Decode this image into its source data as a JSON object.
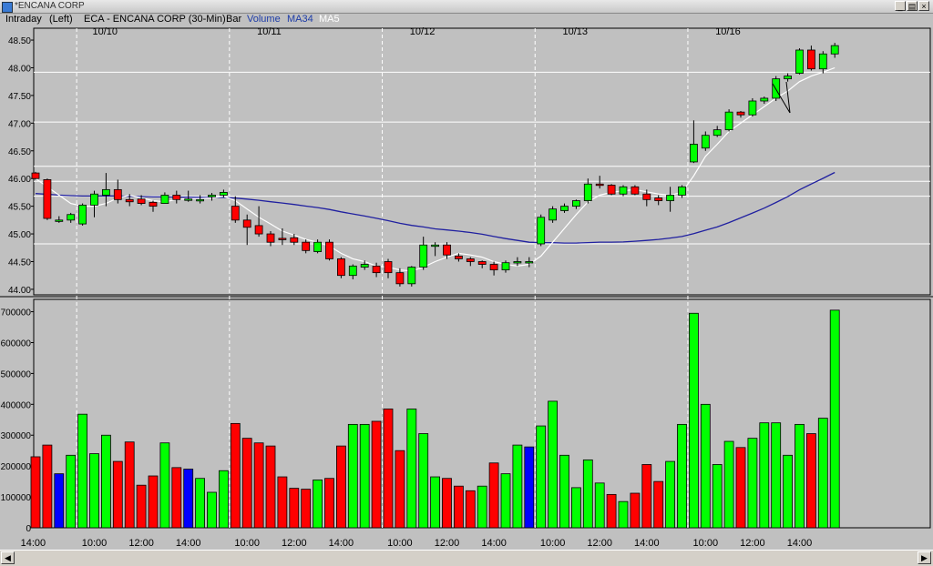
{
  "window": {
    "title": "*ENCANA CORP"
  },
  "header": {
    "mode": "Intraday",
    "scale_side": "(Left)",
    "instrument": "ECA - ENCANA CORP (30-Min)",
    "style": "Bar",
    "ind_volume": "Volume",
    "ind_ma34": "MA34",
    "ind_ma5": "MA5"
  },
  "colors": {
    "up": "#00ff00",
    "down": "#ff0000",
    "neutral_volume": "#0000ff",
    "ma34": "#2020a0",
    "ma5": "#ffffff",
    "background": "#c0c0c0"
  },
  "chart_data": {
    "type": "candlestick",
    "date_labels": [
      {
        "label": "10/10",
        "bar": 5
      },
      {
        "label": "10/11",
        "bar": 19
      },
      {
        "label": "10/12",
        "bar": 32
      },
      {
        "label": "10/13",
        "bar": 45
      },
      {
        "label": "10/16",
        "bar": 58
      }
    ],
    "session_breaks": [
      3.5,
      16.5,
      29.5,
      42.5,
      55.5
    ],
    "time_labels": [
      {
        "label": "14:00",
        "bar": -0.2
      },
      {
        "label": "10:00",
        "bar": 5
      },
      {
        "label": "12:00",
        "bar": 9
      },
      {
        "label": "14:00",
        "bar": 13
      },
      {
        "label": "10:00",
        "bar": 18
      },
      {
        "label": "12:00",
        "bar": 22
      },
      {
        "label": "14:00",
        "bar": 26
      },
      {
        "label": "10:00",
        "bar": 31
      },
      {
        "label": "12:00",
        "bar": 35
      },
      {
        "label": "14:00",
        "bar": 39
      },
      {
        "label": "10:00",
        "bar": 44
      },
      {
        "label": "12:00",
        "bar": 48
      },
      {
        "label": "14:00",
        "bar": 52
      },
      {
        "label": "10:00",
        "bar": 57
      },
      {
        "label": "12:00",
        "bar": 61
      },
      {
        "label": "14:00",
        "bar": 65
      }
    ],
    "price_axis": {
      "min": 43.9,
      "max": 48.55,
      "ticks": [
        "44.00",
        "44.50",
        "45.00",
        "45.50",
        "46.00",
        "46.50",
        "47.00",
        "47.50",
        "48.00",
        "48.50"
      ]
    },
    "volume_axis": {
      "min": 0,
      "max": 740000,
      "ticks": [
        "0",
        "100000",
        "200000",
        "300000",
        "400000",
        "500000",
        "600000",
        "700000"
      ]
    },
    "horizontal_lines": [
      47.92,
      47.02,
      46.22,
      45.95,
      45.68,
      44.82
    ],
    "bars": [
      {
        "o": 46.1,
        "h": 46.12,
        "l": 45.98,
        "c": 46.0,
        "v": 230000,
        "vc": "down"
      },
      {
        "o": 45.98,
        "h": 46.0,
        "l": 45.25,
        "c": 45.28,
        "v": 268000,
        "vc": "down"
      },
      {
        "o": 45.25,
        "h": 45.32,
        "l": 45.2,
        "c": 45.25,
        "v": 175000,
        "vc": "neutral"
      },
      {
        "o": 45.25,
        "h": 45.38,
        "l": 45.2,
        "c": 45.35,
        "v": 235000,
        "vc": "up"
      },
      {
        "o": 45.18,
        "h": 45.55,
        "l": 45.15,
        "c": 45.52,
        "v": 368000,
        "vc": "up"
      },
      {
        "o": 45.52,
        "h": 45.78,
        "l": 45.3,
        "c": 45.72,
        "v": 240000,
        "vc": "up"
      },
      {
        "o": 45.7,
        "h": 46.1,
        "l": 45.5,
        "c": 45.8,
        "v": 300000,
        "vc": "up"
      },
      {
        "o": 45.8,
        "h": 45.98,
        "l": 45.55,
        "c": 45.62,
        "v": 215000,
        "vc": "down"
      },
      {
        "o": 45.62,
        "h": 45.72,
        "l": 45.5,
        "c": 45.58,
        "v": 278000,
        "vc": "down"
      },
      {
        "o": 45.63,
        "h": 45.7,
        "l": 45.52,
        "c": 45.55,
        "v": 138000,
        "vc": "down"
      },
      {
        "o": 45.57,
        "h": 45.6,
        "l": 45.4,
        "c": 45.5,
        "v": 168000,
        "vc": "down"
      },
      {
        "o": 45.55,
        "h": 45.75,
        "l": 45.55,
        "c": 45.7,
        "v": 275000,
        "vc": "up"
      },
      {
        "o": 45.7,
        "h": 45.78,
        "l": 45.55,
        "c": 45.62,
        "v": 195000,
        "vc": "down"
      },
      {
        "o": 45.62,
        "h": 45.78,
        "l": 45.58,
        "c": 45.63,
        "v": 190000,
        "vc": "neutral"
      },
      {
        "o": 45.6,
        "h": 45.7,
        "l": 45.55,
        "c": 45.62,
        "v": 160000,
        "vc": "up"
      },
      {
        "o": 45.67,
        "h": 45.74,
        "l": 45.6,
        "c": 45.7,
        "v": 115000,
        "vc": "up"
      },
      {
        "o": 45.7,
        "h": 45.8,
        "l": 45.66,
        "c": 45.75,
        "v": 185000,
        "vc": "up"
      },
      {
        "o": 45.5,
        "h": 45.68,
        "l": 45.2,
        "c": 45.25,
        "v": 338000,
        "vc": "down"
      },
      {
        "o": 45.25,
        "h": 45.35,
        "l": 44.8,
        "c": 45.12,
        "v": 290000,
        "vc": "down"
      },
      {
        "o": 45.15,
        "h": 45.5,
        "l": 44.95,
        "c": 45.0,
        "v": 275000,
        "vc": "down"
      },
      {
        "o": 45.0,
        "h": 45.05,
        "l": 44.78,
        "c": 44.85,
        "v": 265000,
        "vc": "down"
      },
      {
        "o": 44.92,
        "h": 45.1,
        "l": 44.8,
        "c": 44.9,
        "v": 165000,
        "vc": "down"
      },
      {
        "o": 44.93,
        "h": 45.0,
        "l": 44.8,
        "c": 44.85,
        "v": 128000,
        "vc": "down"
      },
      {
        "o": 44.85,
        "h": 44.9,
        "l": 44.65,
        "c": 44.7,
        "v": 125000,
        "vc": "down"
      },
      {
        "o": 44.68,
        "h": 44.9,
        "l": 44.65,
        "c": 44.85,
        "v": 155000,
        "vc": "up"
      },
      {
        "o": 44.85,
        "h": 44.9,
        "l": 44.52,
        "c": 44.55,
        "v": 160000,
        "vc": "down"
      },
      {
        "o": 44.55,
        "h": 44.58,
        "l": 44.2,
        "c": 44.25,
        "v": 265000,
        "vc": "down"
      },
      {
        "o": 44.25,
        "h": 44.45,
        "l": 44.18,
        "c": 44.42,
        "v": 335000,
        "vc": "up"
      },
      {
        "o": 44.4,
        "h": 44.52,
        "l": 44.35,
        "c": 44.45,
        "v": 335000,
        "vc": "up"
      },
      {
        "o": 44.42,
        "h": 44.48,
        "l": 44.22,
        "c": 44.3,
        "v": 345000,
        "vc": "down"
      },
      {
        "o": 44.5,
        "h": 44.55,
        "l": 44.2,
        "c": 44.3,
        "v": 385000,
        "vc": "down"
      },
      {
        "o": 44.3,
        "h": 44.38,
        "l": 44.05,
        "c": 44.1,
        "v": 250000,
        "vc": "down"
      },
      {
        "o": 44.1,
        "h": 44.42,
        "l": 44.05,
        "c": 44.4,
        "v": 385000,
        "vc": "up"
      },
      {
        "o": 44.4,
        "h": 44.95,
        "l": 44.35,
        "c": 44.8,
        "v": 305000,
        "vc": "up"
      },
      {
        "o": 44.78,
        "h": 44.85,
        "l": 44.6,
        "c": 44.8,
        "v": 165000,
        "vc": "up"
      },
      {
        "o": 44.8,
        "h": 44.85,
        "l": 44.55,
        "c": 44.62,
        "v": 160000,
        "vc": "down"
      },
      {
        "o": 44.6,
        "h": 44.65,
        "l": 44.5,
        "c": 44.55,
        "v": 135000,
        "vc": "down"
      },
      {
        "o": 44.55,
        "h": 44.58,
        "l": 44.42,
        "c": 44.5,
        "v": 120000,
        "vc": "down"
      },
      {
        "o": 44.5,
        "h": 44.52,
        "l": 44.38,
        "c": 44.45,
        "v": 135000,
        "vc": "up"
      },
      {
        "o": 44.45,
        "h": 44.5,
        "l": 44.25,
        "c": 44.35,
        "v": 210000,
        "vc": "down"
      },
      {
        "o": 44.35,
        "h": 44.52,
        "l": 44.3,
        "c": 44.48,
        "v": 175000,
        "vc": "up"
      },
      {
        "o": 44.48,
        "h": 44.58,
        "l": 44.42,
        "c": 44.5,
        "v": 268000,
        "vc": "up"
      },
      {
        "o": 44.48,
        "h": 44.58,
        "l": 44.4,
        "c": 44.5,
        "v": 262000,
        "vc": "neutral"
      },
      {
        "o": 44.82,
        "h": 45.35,
        "l": 44.78,
        "c": 45.3,
        "v": 330000,
        "vc": "up"
      },
      {
        "o": 45.25,
        "h": 45.5,
        "l": 45.2,
        "c": 45.45,
        "v": 410000,
        "vc": "up"
      },
      {
        "o": 45.42,
        "h": 45.55,
        "l": 45.38,
        "c": 45.5,
        "v": 235000,
        "vc": "up"
      },
      {
        "o": 45.5,
        "h": 45.62,
        "l": 45.45,
        "c": 45.6,
        "v": 130000,
        "vc": "up"
      },
      {
        "o": 45.6,
        "h": 46.0,
        "l": 45.55,
        "c": 45.9,
        "v": 220000,
        "vc": "up"
      },
      {
        "o": 45.9,
        "h": 46.05,
        "l": 45.82,
        "c": 45.88,
        "v": 145000,
        "vc": "up"
      },
      {
        "o": 45.88,
        "h": 45.9,
        "l": 45.7,
        "c": 45.72,
        "v": 108000,
        "vc": "down"
      },
      {
        "o": 45.72,
        "h": 45.88,
        "l": 45.68,
        "c": 45.85,
        "v": 85000,
        "vc": "up"
      },
      {
        "o": 45.85,
        "h": 45.88,
        "l": 45.7,
        "c": 45.72,
        "v": 112000,
        "vc": "down"
      },
      {
        "o": 45.72,
        "h": 45.8,
        "l": 45.5,
        "c": 45.62,
        "v": 205000,
        "vc": "down"
      },
      {
        "o": 45.65,
        "h": 45.7,
        "l": 45.52,
        "c": 45.6,
        "v": 150000,
        "vc": "down"
      },
      {
        "o": 45.6,
        "h": 45.85,
        "l": 45.4,
        "c": 45.7,
        "v": 215000,
        "vc": "up"
      },
      {
        "o": 45.7,
        "h": 45.88,
        "l": 45.65,
        "c": 45.85,
        "v": 335000,
        "vc": "up"
      },
      {
        "o": 46.3,
        "h": 47.05,
        "l": 46.28,
        "c": 46.62,
        "v": 695000,
        "vc": "up"
      },
      {
        "o": 46.55,
        "h": 46.85,
        "l": 46.5,
        "c": 46.78,
        "v": 400000,
        "vc": "up"
      },
      {
        "o": 46.78,
        "h": 46.95,
        "l": 46.75,
        "c": 46.88,
        "v": 205000,
        "vc": "up"
      },
      {
        "o": 46.88,
        "h": 47.25,
        "l": 46.85,
        "c": 47.2,
        "v": 280000,
        "vc": "up"
      },
      {
        "o": 47.2,
        "h": 47.22,
        "l": 47.1,
        "c": 47.15,
        "v": 260000,
        "vc": "down"
      },
      {
        "o": 47.15,
        "h": 47.45,
        "l": 47.12,
        "c": 47.4,
        "v": 290000,
        "vc": "up"
      },
      {
        "o": 47.4,
        "h": 47.48,
        "l": 47.35,
        "c": 47.45,
        "v": 340000,
        "vc": "up"
      },
      {
        "o": 47.45,
        "h": 47.85,
        "l": 47.4,
        "c": 47.8,
        "v": 340000,
        "vc": "up"
      },
      {
        "o": 47.8,
        "h": 47.9,
        "l": 47.75,
        "c": 47.85,
        "v": 235000,
        "vc": "up"
      },
      {
        "o": 47.9,
        "h": 48.35,
        "l": 47.88,
        "c": 48.32,
        "v": 335000,
        "vc": "up"
      },
      {
        "o": 48.32,
        "h": 48.4,
        "l": 47.95,
        "c": 47.98,
        "v": 305000,
        "vc": "down"
      },
      {
        "o": 47.98,
        "h": 48.3,
        "l": 47.9,
        "c": 48.25,
        "v": 355000,
        "vc": "up"
      },
      {
        "o": 48.25,
        "h": 48.45,
        "l": 48.18,
        "c": 48.4,
        "v": 705000,
        "vc": "up"
      }
    ],
    "ma5": [
      46.0,
      45.85,
      45.7,
      45.55,
      45.5,
      45.5,
      45.55,
      45.65,
      45.7,
      45.65,
      45.6,
      45.58,
      45.62,
      45.64,
      45.64,
      45.65,
      45.68,
      45.6,
      45.45,
      45.3,
      45.18,
      45.05,
      44.98,
      44.9,
      44.85,
      44.78,
      44.65,
      44.55,
      44.5,
      44.42,
      44.4,
      44.35,
      44.33,
      44.4,
      44.5,
      44.58,
      44.65,
      44.62,
      44.58,
      44.5,
      44.45,
      44.42,
      44.45,
      44.6,
      44.85,
      45.1,
      45.35,
      45.58,
      45.7,
      45.75,
      45.78,
      45.8,
      45.76,
      45.72,
      45.7,
      45.75,
      46.05,
      46.4,
      46.62,
      46.85,
      47.0,
      47.15,
      47.3,
      47.45,
      47.58,
      47.75,
      47.85,
      47.92,
      48.0
    ]
  }
}
